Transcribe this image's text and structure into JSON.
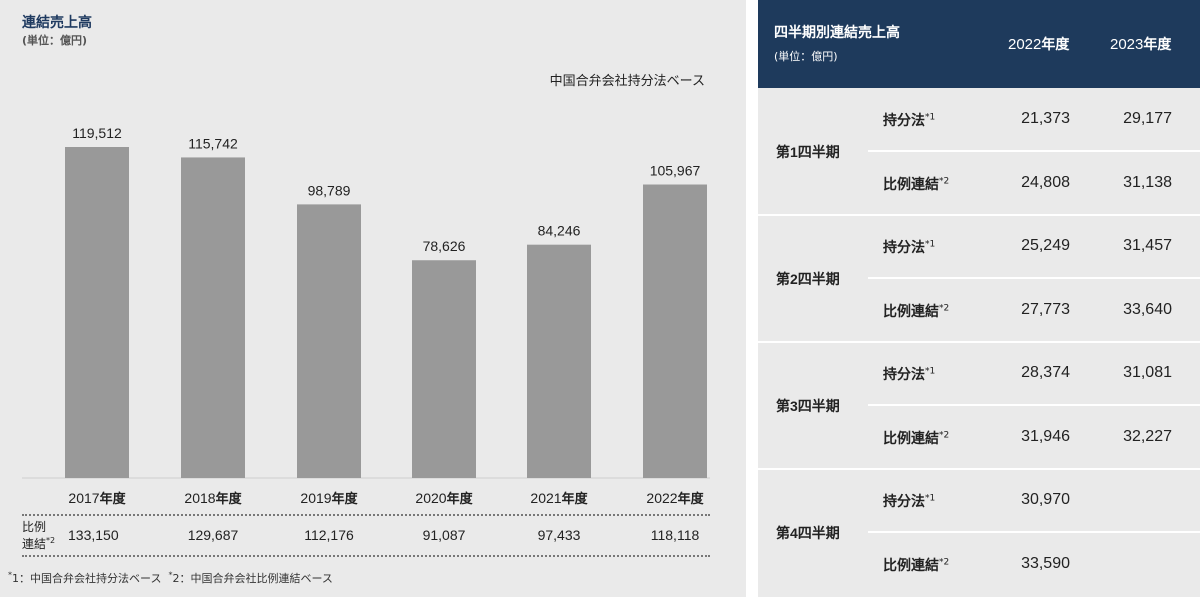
{
  "left_panel": {
    "title": "連結売上高",
    "unit": "(単位：億円)",
    "basis_label": "中国合弁会社持分法ベース",
    "ratio_label_line1": "比例",
    "ratio_label_line2": "連結",
    "ratio_label_mark": "*2",
    "year_suffix": "年度",
    "footnote_mark1": "*",
    "footnote1": "1：中国合弁会社持分法ベース",
    "footnote_mark2": "*",
    "footnote2": "2：中国合弁会社比例連結ベース"
  },
  "chart_data": {
    "type": "bar",
    "title": "連結売上高",
    "ylabel": "",
    "xlabel": "",
    "categories": [
      "2017",
      "2018",
      "2019",
      "2020",
      "2021",
      "2022"
    ],
    "values": [
      119512,
      115742,
      98789,
      78626,
      84246,
      105967
    ],
    "value_labels": [
      "119,512",
      "115,742",
      "98,789",
      "78,626",
      "84,246",
      "105,967"
    ],
    "ratio_values": [
      "133,150",
      "129,687",
      "112,176",
      "91,087",
      "97,433",
      "118,118"
    ],
    "ylim": [
      0,
      119512
    ],
    "bar_color": "#999999",
    "grid": false
  },
  "right_panel": {
    "title": "四半期別連結売上高",
    "unit": "(単位：億円)",
    "col1_year": "2022",
    "col2_year": "2023",
    "year_suffix": "年度",
    "quarters": [
      {
        "prefix": "第",
        "num": "1",
        "suffix": "四半期",
        "equity_label": "持分法",
        "equity_mark": "*1",
        "equity_2022": "21,373",
        "equity_2023": "29,177",
        "prop_label": "比例連結",
        "prop_mark": "*2",
        "prop_2022": "24,808",
        "prop_2023": "31,138"
      },
      {
        "prefix": "第",
        "num": "2",
        "suffix": "四半期",
        "equity_label": "持分法",
        "equity_mark": "*1",
        "equity_2022": "25,249",
        "equity_2023": "31,457",
        "prop_label": "比例連結",
        "prop_mark": "*2",
        "prop_2022": "27,773",
        "prop_2023": "33,640"
      },
      {
        "prefix": "第",
        "num": "3",
        "suffix": "四半期",
        "equity_label": "持分法",
        "equity_mark": "*1",
        "equity_2022": "28,374",
        "equity_2023": "31,081",
        "prop_label": "比例連結",
        "prop_mark": "*2",
        "prop_2022": "31,946",
        "prop_2023": "32,227"
      },
      {
        "prefix": "第",
        "num": "4",
        "suffix": "四半期",
        "equity_label": "持分法",
        "equity_mark": "*1",
        "equity_2022": "30,970",
        "equity_2023": "",
        "prop_label": "比例連結",
        "prop_mark": "*2",
        "prop_2022": "33,590",
        "prop_2023": ""
      }
    ],
    "header_color": "#1e3a5c",
    "panel_color": "#eaeaea"
  }
}
